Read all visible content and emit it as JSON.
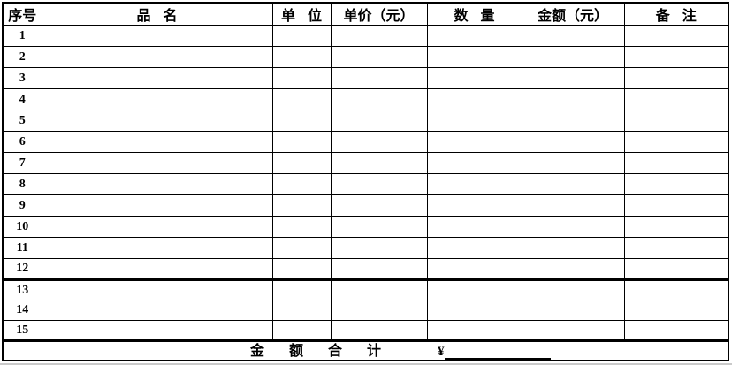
{
  "page": {
    "background_color": "#ffffff",
    "grid_color": "#000000",
    "page_edge_color": "#bdbdbd"
  },
  "table": {
    "columns": [
      {
        "key": "index",
        "label": "序号"
      },
      {
        "key": "name",
        "label": "品 名"
      },
      {
        "key": "unit",
        "label": "单 位"
      },
      {
        "key": "unit_price",
        "label": "单价（元）"
      },
      {
        "key": "quantity",
        "label": "数 量"
      },
      {
        "key": "amount",
        "label": "金额（元）"
      },
      {
        "key": "notes",
        "label": "备 注"
      }
    ],
    "thick_divider_after_row": "12",
    "rows": [
      {
        "no": "1",
        "name": "",
        "unit": "",
        "unit_price": "",
        "quantity": "",
        "amount": "",
        "notes": ""
      },
      {
        "no": "2",
        "name": "",
        "unit": "",
        "unit_price": "",
        "quantity": "",
        "amount": "",
        "notes": ""
      },
      {
        "no": "3",
        "name": "",
        "unit": "",
        "unit_price": "",
        "quantity": "",
        "amount": "",
        "notes": ""
      },
      {
        "no": "4",
        "name": "",
        "unit": "",
        "unit_price": "",
        "quantity": "",
        "amount": "",
        "notes": ""
      },
      {
        "no": "5",
        "name": "",
        "unit": "",
        "unit_price": "",
        "quantity": "",
        "amount": "",
        "notes": ""
      },
      {
        "no": "6",
        "name": "",
        "unit": "",
        "unit_price": "",
        "quantity": "",
        "amount": "",
        "notes": ""
      },
      {
        "no": "7",
        "name": "",
        "unit": "",
        "unit_price": "",
        "quantity": "",
        "amount": "",
        "notes": ""
      },
      {
        "no": "8",
        "name": "",
        "unit": "",
        "unit_price": "",
        "quantity": "",
        "amount": "",
        "notes": ""
      },
      {
        "no": "9",
        "name": "",
        "unit": "",
        "unit_price": "",
        "quantity": "",
        "amount": "",
        "notes": ""
      },
      {
        "no": "10",
        "name": "",
        "unit": "",
        "unit_price": "",
        "quantity": "",
        "amount": "",
        "notes": ""
      },
      {
        "no": "11",
        "name": "",
        "unit": "",
        "unit_price": "",
        "quantity": "",
        "amount": "",
        "notes": ""
      },
      {
        "no": "12",
        "name": "",
        "unit": "",
        "unit_price": "",
        "quantity": "",
        "amount": "",
        "notes": ""
      },
      {
        "no": "13",
        "name": "",
        "unit": "",
        "unit_price": "",
        "quantity": "",
        "amount": "",
        "notes": ""
      },
      {
        "no": "14",
        "name": "",
        "unit": "",
        "unit_price": "",
        "quantity": "",
        "amount": "",
        "notes": ""
      },
      {
        "no": "15",
        "name": "",
        "unit": "",
        "unit_price": "",
        "quantity": "",
        "amount": "",
        "notes": ""
      }
    ],
    "footer": {
      "total_label": "金 额 合 计",
      "currency_symbol": "¥",
      "total_value": ""
    }
  }
}
